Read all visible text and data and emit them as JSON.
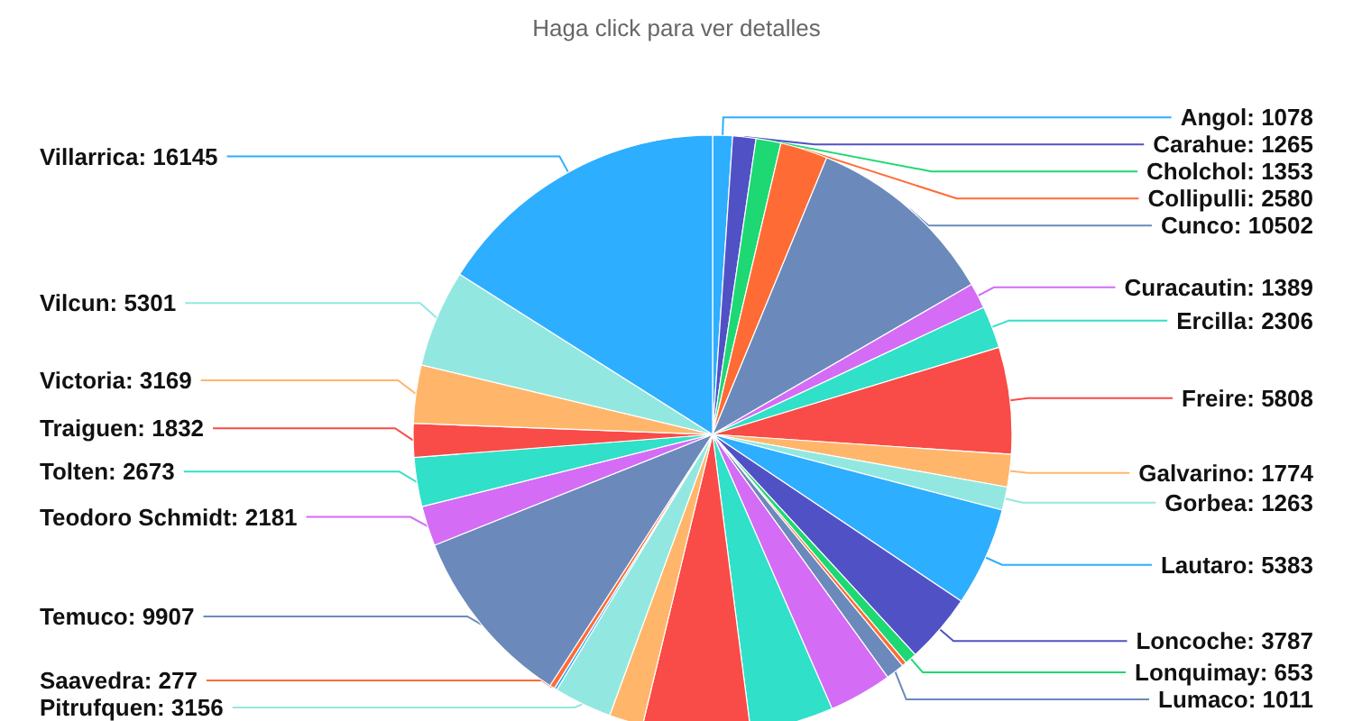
{
  "chart_data": {
    "type": "pie",
    "subtitle": "Haga click para ver detalles",
    "categories": [
      "Angol",
      "Carahue",
      "Cholchol",
      "Collipulli",
      "Cunco",
      "Curacautin",
      "Ercilla",
      "Freire",
      "Galvarino",
      "Gorbea",
      "Lautaro",
      "Loncoche",
      "Lonquimay",
      null,
      "Lumaco",
      null,
      null,
      null,
      null,
      "Pitrufquen",
      null,
      "Saavedra",
      "Temuco",
      "Teodoro Schmidt",
      "Tolten",
      "Traiguen",
      "Victoria",
      "Vilcun",
      "Villarrica"
    ],
    "values": [
      1078,
      1265,
      1353,
      2580,
      10502,
      1389,
      2306,
      5808,
      1774,
      1263,
      5383,
      3787,
      653,
      250,
      1011,
      3430,
      4540,
      5840,
      1840,
      3156,
      150,
      277,
      9907,
      2181,
      2673,
      1832,
      3169,
      5301,
      16145
    ],
    "colors": [
      "#2eaeff",
      "#5151c6",
      "#1ed873",
      "#ff6b35",
      "#6b8abb",
      "#d46cf5",
      "#30e0c8",
      "#f94b47",
      "#ffb66b",
      "#92e8e0",
      "#2eaeff",
      "#5151c6",
      "#1ed873",
      "#ff6b35",
      "#6b8abb",
      "#d46cf5",
      "#30e0c8",
      "#f94b47",
      "#ffb66b",
      "#92e8e0",
      "#2eaeff",
      "#ff6b35",
      "#6b8abb",
      "#d46cf5",
      "#30e0c8",
      "#f94b47",
      "#ffb66b",
      "#92e8e0",
      "#2eaeff"
    ],
    "value_labels": [
      ": 1078",
      ": 1265",
      ": 1353",
      ": 2580",
      ": 10502",
      ": 1389",
      ": 2306",
      ": 5808",
      ": 1774",
      ": 1263",
      ": 5383",
      ": 3787",
      ": 653",
      null,
      ": 1011",
      null,
      null,
      null,
      null,
      ": 3156",
      null,
      ": 277",
      ": 9907",
      ": 2181",
      ": 2673",
      ": 1832",
      ": 3169",
      ": 5301",
      ": 16145"
    ]
  }
}
